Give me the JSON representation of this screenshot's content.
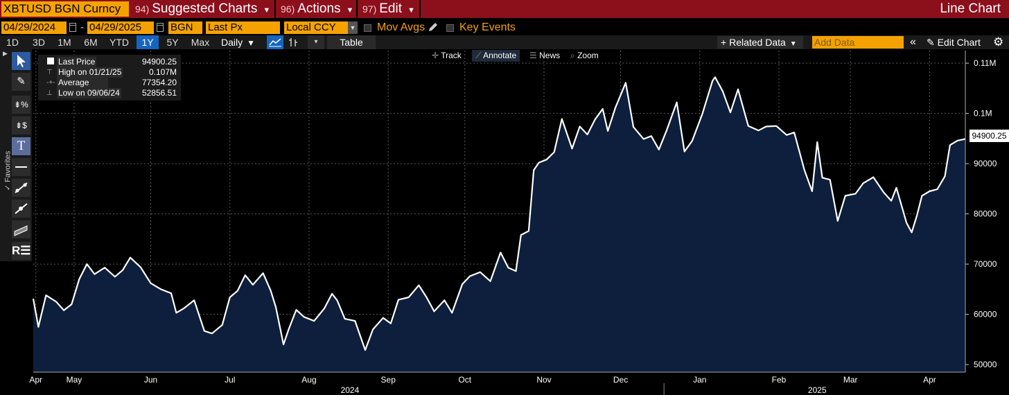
{
  "titlebar": {
    "security": "XBTUSD BGN Curncy",
    "menus": [
      {
        "num": "94)",
        "label": "Suggested Charts"
      },
      {
        "num": "96)",
        "label": "Actions"
      },
      {
        "num": "97)",
        "label": "Edit"
      }
    ],
    "chart_title": "Line Chart"
  },
  "params": {
    "start_date": "04/29/2024",
    "end_date": "04/29/2025",
    "date_sep": "-",
    "source": "BGN",
    "field": "Last Px",
    "currency": "Local CCY",
    "mov_avgs": "Mov Avgs",
    "key_events": "Key Events"
  },
  "ranges": [
    "1D",
    "3D",
    "1M",
    "6M",
    "YTD",
    "1Y",
    "5Y",
    "Max"
  ],
  "selected_range": "1Y",
  "toolbar3": {
    "period": "Daily",
    "table": "Table",
    "related": "Related Data",
    "add_placeholder": "Add Data",
    "edit_chart": "Edit Chart"
  },
  "left_tools": {
    "favorites": "Favorites"
  },
  "legend": {
    "rows": [
      {
        "label": "Last Price",
        "value": "94900.25"
      },
      {
        "label": "High on 01/21/25",
        "value": "0.107M"
      },
      {
        "label": "Average",
        "value": "77354.20"
      },
      {
        "label": "Low on 09/06/24",
        "value": "52856.51"
      }
    ]
  },
  "chart_tools": [
    "Track",
    "Annotate",
    "News",
    "Zoom"
  ],
  "chart_data": {
    "type": "area",
    "ylim": [
      48500,
      112500
    ],
    "yticks": [
      {
        "v": 50000,
        "label": "50000"
      },
      {
        "v": 60000,
        "label": "60000"
      },
      {
        "v": 70000,
        "label": "70000"
      },
      {
        "v": 80000,
        "label": "80000"
      },
      {
        "v": 90000,
        "label": "90000"
      },
      {
        "v": 100000,
        "label": "0.1M"
      },
      {
        "v": 110000,
        "label": "0.11M"
      }
    ],
    "x_start": "2024-04-29",
    "x_end": "2025-04-29",
    "month_labels": [
      {
        "d": "2024-04-30",
        "label": "Apr"
      },
      {
        "d": "2024-05-15",
        "label": "May"
      },
      {
        "d": "2024-06-14",
        "label": "Jun"
      },
      {
        "d": "2024-07-15",
        "label": "Jul"
      },
      {
        "d": "2024-08-15",
        "label": "Aug"
      },
      {
        "d": "2024-09-15",
        "label": "Sep"
      },
      {
        "d": "2024-10-15",
        "label": "Oct"
      },
      {
        "d": "2024-11-15",
        "label": "Nov"
      },
      {
        "d": "2024-12-15",
        "label": "Dec"
      },
      {
        "d": "2025-01-15",
        "label": "Jan"
      },
      {
        "d": "2025-02-15",
        "label": "Feb"
      },
      {
        "d": "2025-03-15",
        "label": "Mar"
      },
      {
        "d": "2025-04-15",
        "label": "Apr"
      }
    ],
    "year_labels": [
      {
        "d": "2024-08-31",
        "label": "2024"
      },
      {
        "d": "2025-03-02",
        "label": "2025"
      }
    ],
    "grid": true,
    "last_value_label": "94900.25",
    "series": [
      {
        "color": "#ffffff",
        "fill": "#0d1f3c",
        "points": [
          [
            "2024-04-29",
            63100
          ],
          [
            "2024-05-01",
            57500
          ],
          [
            "2024-05-04",
            63800
          ],
          [
            "2024-05-08",
            62500
          ],
          [
            "2024-05-11",
            60800
          ],
          [
            "2024-05-14",
            62000
          ],
          [
            "2024-05-17",
            67000
          ],
          [
            "2024-05-20",
            70000
          ],
          [
            "2024-05-23",
            68000
          ],
          [
            "2024-05-27",
            69300
          ],
          [
            "2024-05-31",
            67500
          ],
          [
            "2024-06-03",
            68800
          ],
          [
            "2024-06-06",
            71300
          ],
          [
            "2024-06-10",
            69400
          ],
          [
            "2024-06-14",
            66200
          ],
          [
            "2024-06-18",
            65000
          ],
          [
            "2024-06-22",
            64200
          ],
          [
            "2024-06-24",
            60300
          ],
          [
            "2024-06-27",
            61200
          ],
          [
            "2024-07-01",
            62800
          ],
          [
            "2024-07-05",
            56700
          ],
          [
            "2024-07-08",
            56200
          ],
          [
            "2024-07-12",
            57900
          ],
          [
            "2024-07-15",
            63400
          ],
          [
            "2024-07-18",
            64700
          ],
          [
            "2024-07-21",
            67800
          ],
          [
            "2024-07-24",
            65900
          ],
          [
            "2024-07-28",
            68200
          ],
          [
            "2024-07-31",
            64700
          ],
          [
            "2024-08-02",
            61400
          ],
          [
            "2024-08-05",
            54000
          ],
          [
            "2024-08-07",
            57000
          ],
          [
            "2024-08-10",
            60900
          ],
          [
            "2024-08-13",
            59500
          ],
          [
            "2024-08-17",
            58700
          ],
          [
            "2024-08-21",
            61200
          ],
          [
            "2024-08-24",
            64100
          ],
          [
            "2024-08-26",
            62800
          ],
          [
            "2024-08-29",
            59100
          ],
          [
            "2024-09-02",
            58700
          ],
          [
            "2024-09-06",
            52900
          ],
          [
            "2024-09-09",
            57000
          ],
          [
            "2024-09-13",
            59300
          ],
          [
            "2024-09-16",
            58200
          ],
          [
            "2024-09-19",
            62900
          ],
          [
            "2024-09-23",
            63400
          ],
          [
            "2024-09-27",
            65800
          ],
          [
            "2024-09-30",
            63400
          ],
          [
            "2024-10-03",
            60600
          ],
          [
            "2024-10-07",
            62800
          ],
          [
            "2024-10-10",
            60300
          ],
          [
            "2024-10-14",
            66000
          ],
          [
            "2024-10-17",
            67600
          ],
          [
            "2024-10-21",
            68400
          ],
          [
            "2024-10-25",
            66600
          ],
          [
            "2024-10-29",
            72300
          ],
          [
            "2024-11-01",
            69300
          ],
          [
            "2024-11-04",
            68600
          ],
          [
            "2024-11-06",
            75800
          ],
          [
            "2024-11-09",
            76600
          ],
          [
            "2024-11-11",
            88700
          ],
          [
            "2024-11-13",
            90200
          ],
          [
            "2024-11-16",
            90800
          ],
          [
            "2024-11-19",
            92300
          ],
          [
            "2024-11-22",
            98900
          ],
          [
            "2024-11-26",
            93000
          ],
          [
            "2024-11-29",
            97400
          ],
          [
            "2024-12-02",
            95800
          ],
          [
            "2024-12-05",
            98800
          ],
          [
            "2024-12-08",
            100900
          ],
          [
            "2024-12-10",
            96500
          ],
          [
            "2024-12-13",
            101200
          ],
          [
            "2024-12-17",
            106100
          ],
          [
            "2024-12-20",
            97300
          ],
          [
            "2024-12-24",
            94900
          ],
          [
            "2024-12-27",
            95500
          ],
          [
            "2024-12-30",
            92800
          ],
          [
            "2025-01-02",
            96600
          ],
          [
            "2025-01-06",
            102200
          ],
          [
            "2025-01-09",
            92400
          ],
          [
            "2025-01-12",
            94500
          ],
          [
            "2025-01-16",
            99900
          ],
          [
            "2025-01-20",
            106500
          ],
          [
            "2025-01-21",
            107200
          ],
          [
            "2025-01-24",
            104400
          ],
          [
            "2025-01-27",
            100200
          ],
          [
            "2025-01-30",
            104800
          ],
          [
            "2025-02-03",
            97500
          ],
          [
            "2025-02-07",
            96600
          ],
          [
            "2025-02-10",
            97400
          ],
          [
            "2025-02-14",
            97500
          ],
          [
            "2025-02-18",
            95700
          ],
          [
            "2025-02-21",
            96200
          ],
          [
            "2025-02-25",
            88700
          ],
          [
            "2025-02-28",
            84500
          ],
          [
            "2025-03-02",
            94300
          ],
          [
            "2025-03-04",
            87200
          ],
          [
            "2025-03-07",
            86800
          ],
          [
            "2025-03-10",
            78600
          ],
          [
            "2025-03-13",
            83600
          ],
          [
            "2025-03-17",
            84000
          ],
          [
            "2025-03-20",
            86100
          ],
          [
            "2025-03-24",
            87300
          ],
          [
            "2025-03-28",
            84300
          ],
          [
            "2025-03-31",
            82600
          ],
          [
            "2025-04-02",
            85200
          ],
          [
            "2025-04-06",
            78200
          ],
          [
            "2025-04-08",
            76300
          ],
          [
            "2025-04-10",
            79600
          ],
          [
            "2025-04-12",
            83600
          ],
          [
            "2025-04-15",
            84500
          ],
          [
            "2025-04-18",
            84900
          ],
          [
            "2025-04-21",
            87500
          ],
          [
            "2025-04-23",
            93700
          ],
          [
            "2025-04-26",
            94600
          ],
          [
            "2025-04-29",
            94900
          ]
        ]
      }
    ]
  }
}
